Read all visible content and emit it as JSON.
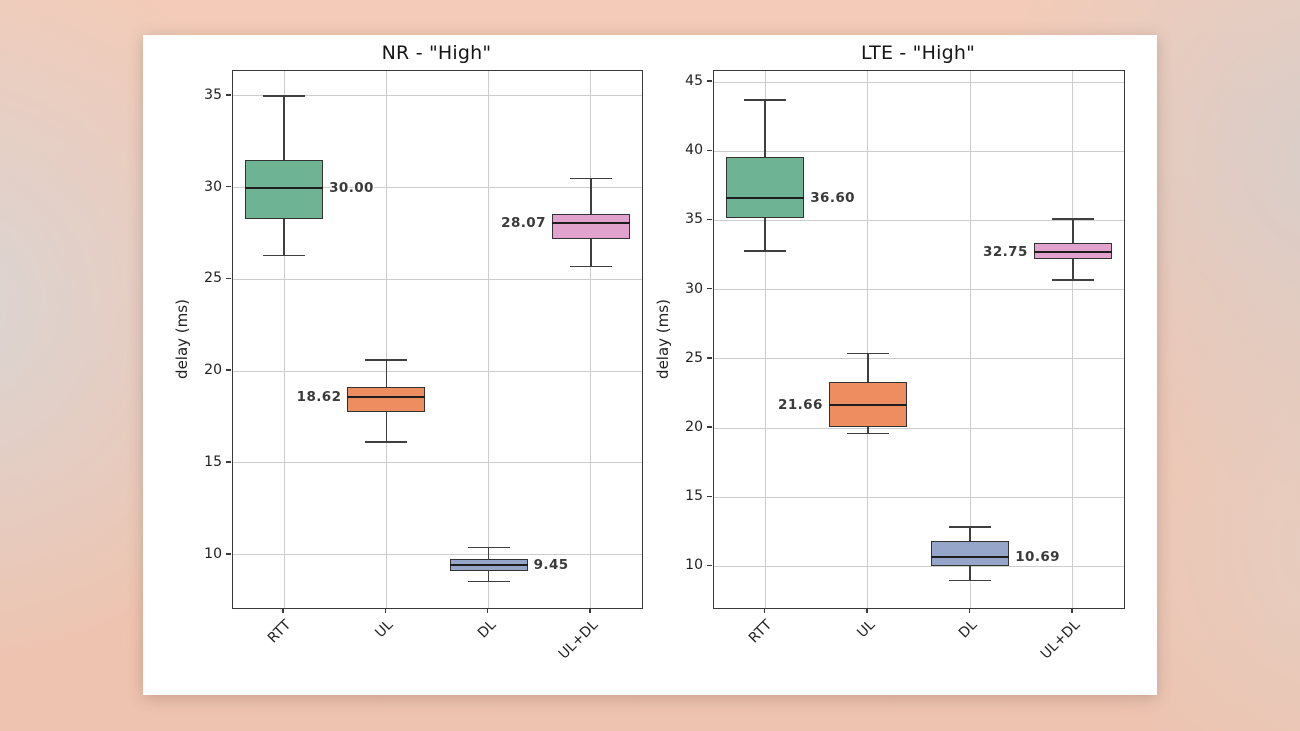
{
  "figure": {
    "background_color": "#f0c5b1",
    "card_color": "#ffffff",
    "grid_color": "#cdcdcd",
    "frame_color": "#3a3a3a"
  },
  "chart_data": [
    {
      "type": "box",
      "title": "NR - \"High\"",
      "ylabel": "delay (ms)",
      "categories": [
        "RTT",
        "UL",
        "DL",
        "UL+DL"
      ],
      "yticks": [
        10,
        15,
        20,
        25,
        30,
        35
      ],
      "ylim": [
        7.1,
        36.35
      ],
      "grid": true,
      "boxes": [
        {
          "category": "RTT",
          "whislo": 26.3,
          "q1": 28.3,
          "med": 30.0,
          "q3": 31.5,
          "whishi": 35.0,
          "label": "30.00",
          "label_side": "right",
          "color": "#6db394"
        },
        {
          "category": "UL",
          "whislo": 16.15,
          "q1": 17.8,
          "med": 18.62,
          "q3": 19.15,
          "whishi": 20.6,
          "label": "18.62",
          "label_side": "left",
          "color": "#ed8d60"
        },
        {
          "category": "DL",
          "whislo": 8.55,
          "q1": 9.1,
          "med": 9.45,
          "q3": 9.75,
          "whishi": 10.4,
          "label": "9.45",
          "label_side": "right",
          "color": "#95a6ca"
        },
        {
          "category": "UL+DL",
          "whislo": 25.7,
          "q1": 27.2,
          "med": 28.07,
          "q3": 28.55,
          "whishi": 30.5,
          "label": "28.07",
          "label_side": "left",
          "color": "#e1a2cd"
        }
      ]
    },
    {
      "type": "box",
      "title": "LTE - \"High\"",
      "ylabel": "delay (ms)",
      "categories": [
        "RTT",
        "UL",
        "DL",
        "UL+DL"
      ],
      "yticks": [
        10,
        15,
        20,
        25,
        30,
        35,
        40,
        45
      ],
      "ylim": [
        7.0,
        45.8
      ],
      "grid": true,
      "boxes": [
        {
          "category": "RTT",
          "whislo": 32.8,
          "q1": 35.2,
          "med": 36.6,
          "q3": 39.6,
          "whishi": 43.7,
          "label": "36.60",
          "label_side": "right",
          "color": "#6db394"
        },
        {
          "category": "UL",
          "whislo": 19.6,
          "q1": 20.1,
          "med": 21.66,
          "q3": 23.3,
          "whishi": 25.4,
          "label": "21.66",
          "label_side": "left",
          "color": "#ed8d60"
        },
        {
          "category": "DL",
          "whislo": 9.0,
          "q1": 10.05,
          "med": 10.69,
          "q3": 11.85,
          "whishi": 12.85,
          "label": "10.69",
          "label_side": "right",
          "color": "#95a6ca"
        },
        {
          "category": "UL+DL",
          "whislo": 30.7,
          "q1": 32.2,
          "med": 32.75,
          "q3": 33.4,
          "whishi": 35.1,
          "label": "32.75",
          "label_side": "left",
          "color": "#e1a2cd"
        }
      ]
    }
  ]
}
